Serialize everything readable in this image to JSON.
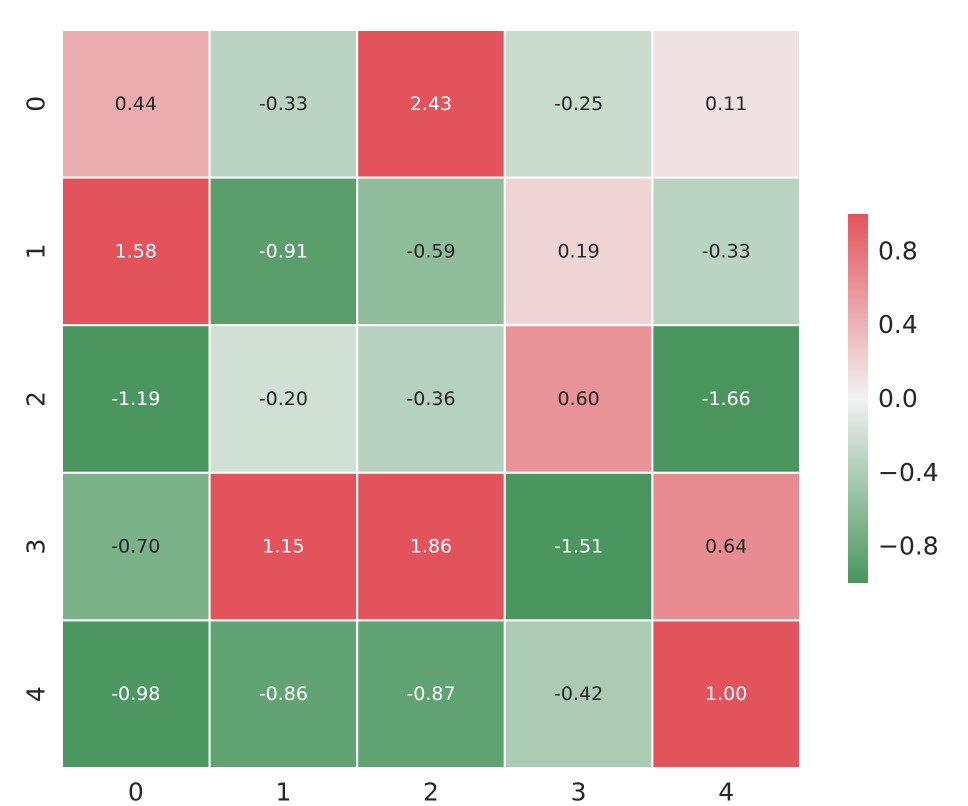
{
  "chart_data": {
    "type": "heatmap",
    "title": "",
    "xlabel": "",
    "ylabel": "",
    "x_categories": [
      "0",
      "1",
      "2",
      "3",
      "4"
    ],
    "y_categories": [
      "0",
      "1",
      "2",
      "3",
      "4"
    ],
    "values": [
      [
        0.44,
        -0.33,
        2.43,
        -0.25,
        0.11
      ],
      [
        1.58,
        -0.91,
        -0.59,
        0.19,
        -0.33
      ],
      [
        -1.19,
        -0.2,
        -0.36,
        0.6,
        -1.66
      ],
      [
        -0.7,
        1.15,
        1.86,
        -1.51,
        0.64
      ],
      [
        -0.98,
        -0.86,
        -0.87,
        -0.42,
        1.0
      ]
    ],
    "labels": [
      [
        "0.44",
        "-0.33",
        "2.43",
        "-0.25",
        "0.11"
      ],
      [
        "1.58",
        "-0.91",
        "-0.59",
        "0.19",
        "-0.33"
      ],
      [
        "-1.19",
        "-0.20",
        "-0.36",
        "0.60",
        "-1.66"
      ],
      [
        "-0.70",
        "1.15",
        "1.86",
        "-1.51",
        "0.64"
      ],
      [
        "-0.98",
        "-0.86",
        "-0.87",
        "-0.42",
        "1.00"
      ]
    ],
    "colorscale": {
      "vmin": -1.0,
      "vmax": 1.0,
      "low_color": "#4a965e",
      "mid_color": "#f2f2f2",
      "high_color": "#e2535c"
    },
    "colorbar": {
      "ticks": [
        0.8,
        0.4,
        0.0,
        -0.4,
        -0.8
      ],
      "tick_labels": [
        "0.8",
        "0.4",
        "0.0",
        "−0.4",
        "−0.8"
      ]
    },
    "annotation_dark_color": "#262626",
    "annotation_light_color": "#ffffff",
    "cell_border_color": "#ffffff"
  }
}
